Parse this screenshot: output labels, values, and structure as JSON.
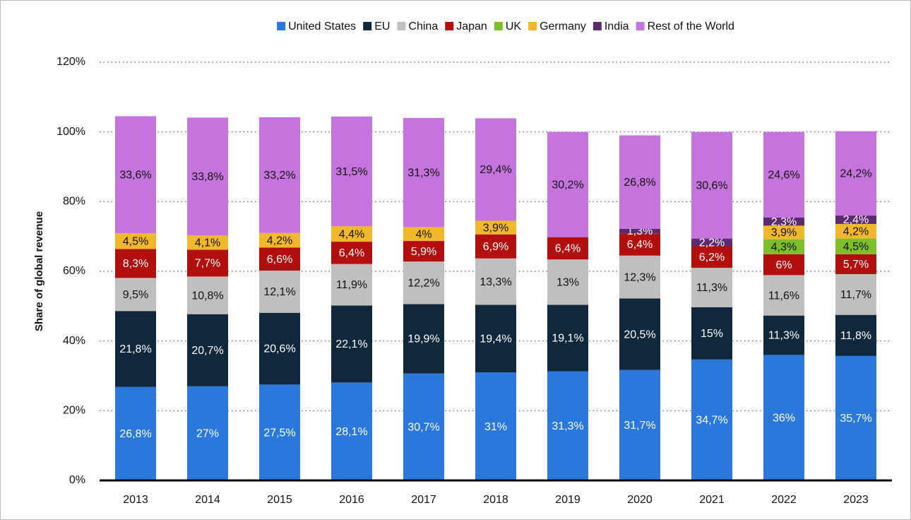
{
  "chart_data": {
    "type": "stacked_bar",
    "y_label": "Share of global revenue",
    "categories": [
      "2013",
      "2014",
      "2015",
      "2016",
      "2017",
      "2018",
      "2019",
      "2020",
      "2021",
      "2022",
      "2023"
    ],
    "ylim": [
      0,
      120
    ],
    "yticks": [
      {
        "value": 0,
        "label": "0%"
      },
      {
        "value": 20,
        "label": "20%"
      },
      {
        "value": 40,
        "label": "40%"
      },
      {
        "value": 60,
        "label": "60%"
      },
      {
        "value": 80,
        "label": "80%"
      },
      {
        "value": 100,
        "label": "100%"
      },
      {
        "value": 120,
        "label": "120%"
      }
    ],
    "grid": true,
    "legend": "top",
    "series": [
      {
        "name": "United States",
        "color": "#2a78dc",
        "values": [
          26.8,
          27,
          27.5,
          28.1,
          30.7,
          31,
          31.3,
          31.7,
          34.7,
          36,
          35.7
        ],
        "value_labels": [
          "26,8%",
          "27%",
          "27,5%",
          "28,1%",
          "30,7%",
          "31%",
          "31,3%",
          "31,7%",
          "34,7%",
          "36%",
          "35,7%"
        ]
      },
      {
        "name": "EU",
        "color": "#0f283d",
        "values": [
          21.8,
          20.7,
          20.6,
          22.1,
          19.9,
          19.4,
          19.1,
          20.5,
          15,
          11.3,
          11.8
        ],
        "value_labels": [
          "21,8%",
          "20,7%",
          "20,6%",
          "22,1%",
          "19,9%",
          "19,4%",
          "19,1%",
          "20,5%",
          "15%",
          "11,3%",
          "11,8%"
        ]
      },
      {
        "name": "China",
        "color": "#bfbfbf",
        "values": [
          9.5,
          10.8,
          12.1,
          11.9,
          12.2,
          13.3,
          13,
          12.3,
          11.3,
          11.6,
          11.7
        ],
        "value_labels": [
          "9,5%",
          "10,8%",
          "12,1%",
          "11,9%",
          "12,2%",
          "13,3%",
          "13%",
          "12,3%",
          "11,3%",
          "11,6%",
          "11,7%"
        ]
      },
      {
        "name": "Japan",
        "color": "#b30f0f",
        "values": [
          8.3,
          7.7,
          6.6,
          6.4,
          5.9,
          6.9,
          6.4,
          6.4,
          6.2,
          6,
          5.7
        ],
        "value_labels": [
          "8,3%",
          "7,7%",
          "6,6%",
          "6,4%",
          "5,9%",
          "6,9%",
          "6,4%",
          "6,4%",
          "6,2%",
          "6%",
          "5,7%"
        ]
      },
      {
        "name": "UK",
        "color": "#7cbf2a",
        "values": [
          null,
          null,
          null,
          null,
          null,
          null,
          null,
          null,
          null,
          4.3,
          4.5
        ],
        "value_labels": [
          null,
          null,
          null,
          null,
          null,
          null,
          null,
          null,
          null,
          "4,3%",
          "4,5%"
        ]
      },
      {
        "name": "Germany",
        "color": "#f2b82b",
        "values": [
          4.5,
          4.1,
          4.2,
          4.4,
          4,
          3.9,
          null,
          null,
          null,
          3.9,
          4.2
        ],
        "value_labels": [
          "4,5%",
          "4,1%",
          "4,2%",
          "4,4%",
          "4%",
          "3,9%",
          null,
          null,
          null,
          "3,9%",
          "4,2%"
        ]
      },
      {
        "name": "India",
        "color": "#5c2a6e",
        "values": [
          null,
          null,
          null,
          null,
          null,
          null,
          null,
          1.3,
          2.2,
          2.3,
          2.4
        ],
        "value_labels": [
          null,
          null,
          null,
          null,
          null,
          null,
          null,
          "1,3%",
          "2,2%",
          "2,3%",
          "2,4%"
        ]
      },
      {
        "name": "Rest of the World",
        "color": "#c474dc",
        "values": [
          33.6,
          33.8,
          33.2,
          31.5,
          31.3,
          29.4,
          30.2,
          26.8,
          30.6,
          24.6,
          24.2
        ],
        "value_labels": [
          "33,6%",
          "33,8%",
          "33,2%",
          "31,5%",
          "31,3%",
          "29,4%",
          "30,2%",
          "26,8%",
          "30,6%",
          "24,6%",
          "24,2%"
        ]
      }
    ]
  }
}
